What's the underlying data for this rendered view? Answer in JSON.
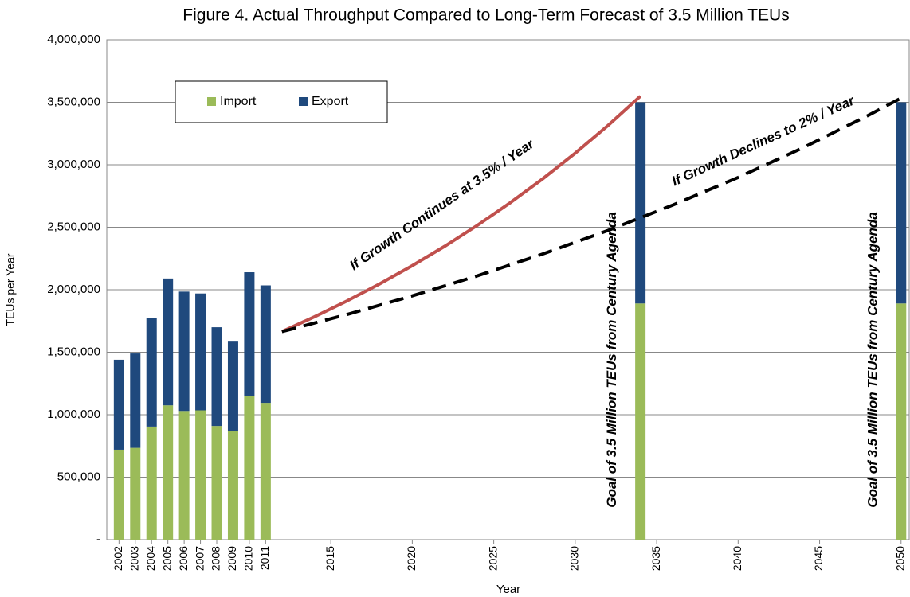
{
  "chart_data": {
    "type": "bar",
    "stacked": true,
    "title": "Figure 4. Actual Throughput Compared to Long-Term Forecast of 3.5 Million TEUs",
    "x_label": "Year",
    "y_label": "TEUs per Year",
    "x": [
      2002,
      2003,
      2004,
      2005,
      2006,
      2007,
      2008,
      2009,
      2010,
      2011,
      2034,
      2050
    ],
    "series": [
      {
        "name": "Import",
        "color": "#9bbb59",
        "values": [
          720000,
          735000,
          905000,
          1075000,
          1030000,
          1035000,
          910000,
          870000,
          1150000,
          1095000,
          1890000,
          1890000
        ]
      },
      {
        "name": "Export",
        "color": "#1f497d",
        "values": [
          720000,
          755000,
          870000,
          1015000,
          955000,
          935000,
          790000,
          715000,
          990000,
          940000,
          1610000,
          1610000
        ]
      }
    ],
    "trend_lines": [
      {
        "label": "If Growth Continues at 3.5% / Year",
        "color": "#c0504d",
        "dashed": false,
        "x": [
          2012,
          2014,
          2016,
          2018,
          2020,
          2022,
          2024,
          2026,
          2028,
          2030,
          2032,
          2034
        ],
        "values": [
          1665000,
          1783600,
          1910700,
          2046700,
          2192500,
          2348600,
          2515900,
          2695100,
          2887100,
          3092700,
          3313000,
          3548900
        ]
      },
      {
        "label": "If Growth Declines to 2% / Year",
        "color": "#000000",
        "dashed": true,
        "x": [
          2012,
          2016,
          2020,
          2024,
          2028,
          2032,
          2036,
          2040,
          2044,
          2048,
          2050
        ],
        "values": [
          1665000,
          1802300,
          1950800,
          2111600,
          2285600,
          2474000,
          2677900,
          2898600,
          3137500,
          3396100,
          3533500
        ]
      }
    ],
    "annotations": [
      "Goal of 3.5 Million TEUs from Century Agenda",
      "Goal of 3.5 Million TEUs from Century Agenda"
    ],
    "xlim": [
      2001.25,
      2050.5
    ],
    "xticks": [
      2002,
      2003,
      2004,
      2005,
      2006,
      2007,
      2008,
      2009,
      2010,
      2011,
      2015,
      2020,
      2025,
      2030,
      2035,
      2040,
      2045,
      2050
    ],
    "ylim": [
      0,
      4000000
    ],
    "yticks": [
      {
        "value": 0,
        "label": "-"
      },
      {
        "value": 500000,
        "label": "500,000"
      },
      {
        "value": 1000000,
        "label": "1,000,000"
      },
      {
        "value": 1500000,
        "label": "1,500,000"
      },
      {
        "value": 2000000,
        "label": "2,000,000"
      },
      {
        "value": 2500000,
        "label": "2,500,000"
      },
      {
        "value": 3000000,
        "label": "3,000,000"
      },
      {
        "value": 3500000,
        "label": "3,500,000"
      },
      {
        "value": 4000000,
        "label": "4,000,000"
      }
    ],
    "grid": true,
    "legend_position": "top-left"
  }
}
